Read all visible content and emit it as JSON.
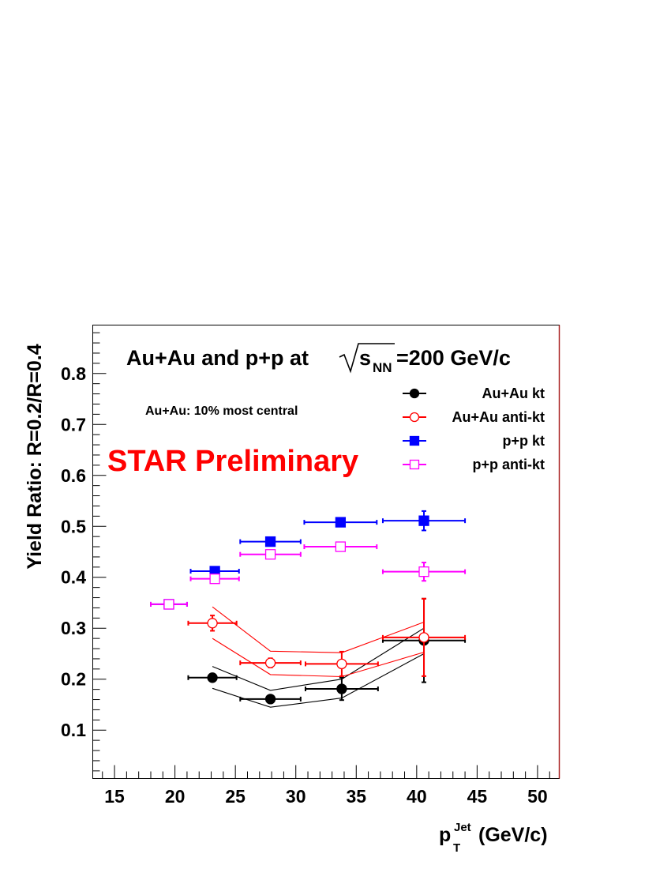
{
  "chart_data": {
    "type": "scatter",
    "title_prefix": "Au+Au and p+p at ",
    "title_sqrt": "s",
    "title_sub": "NN",
    "title_suffix": "=200 GeV/c",
    "annotation": "Au+Au: 10% most central",
    "watermark": "STAR Preliminary",
    "ylabel": "Yield Ratio: R=0.2/R=0.4",
    "xlabel_main": "p",
    "xlabel_sub": "T",
    "xlabel_sup": "Jet",
    "xlabel_unit": "(GeV/c)",
    "xlim": [
      13.2,
      51.8
    ],
    "ylim": [
      0.005,
      0.895
    ],
    "x_ticks": [
      15,
      20,
      25,
      30,
      35,
      40,
      45,
      50
    ],
    "y_ticks": [
      0.1,
      0.2,
      0.3,
      0.4,
      0.5,
      0.6,
      0.7,
      0.8
    ],
    "x_tick_labels": [
      "15",
      "20",
      "25",
      "30",
      "35",
      "40",
      "45",
      "50"
    ],
    "y_tick_labels": [
      "0.1",
      "0.2",
      "0.3",
      "0.4",
      "0.5",
      "0.6",
      "0.7",
      "0.8"
    ],
    "grid": false,
    "legend_position": "top-right",
    "series": [
      {
        "name": "Au+Au kt",
        "color": "#000000",
        "marker": "filled-circle",
        "x": [
          23.1,
          27.9,
          33.8,
          40.6
        ],
        "y": [
          0.203,
          0.161,
          0.181,
          0.276
        ],
        "xerr": [
          2.0,
          2.5,
          3.0,
          3.4
        ],
        "yerr": [
          0.006,
          0.007,
          0.022,
          0.082
        ],
        "band_upper": [
          0.225,
          0.178,
          0.2,
          0.3
        ],
        "band_lower": [
          0.182,
          0.145,
          0.163,
          0.25
        ]
      },
      {
        "name": "Au+Au anti-kt",
        "color": "#ff0000",
        "marker": "open-circle",
        "x": [
          23.1,
          27.9,
          33.8,
          40.6
        ],
        "y": [
          0.31,
          0.232,
          0.23,
          0.282
        ],
        "xerr": [
          2.0,
          2.5,
          3.0,
          3.4
        ],
        "yerr": [
          0.015,
          0.009,
          0.024,
          0.076
        ],
        "band_upper": [
          0.342,
          0.255,
          0.252,
          0.312
        ],
        "band_lower": [
          0.28,
          0.209,
          0.205,
          0.253
        ]
      },
      {
        "name": "p+p kt",
        "color": "#0000ff",
        "marker": "filled-square",
        "x": [
          19.5,
          23.3,
          27.9,
          33.7,
          40.6
        ],
        "y": [
          0.347,
          0.412,
          0.47,
          0.508,
          0.511
        ],
        "xerr": [
          1.5,
          2.0,
          2.5,
          3.0,
          3.4
        ],
        "yerr": [
          0.004,
          0.005,
          0.005,
          0.006,
          0.019
        ]
      },
      {
        "name": "p+p anti-kt",
        "color": "#ff00ff",
        "marker": "open-square",
        "x": [
          19.5,
          23.3,
          27.9,
          33.7,
          40.6
        ],
        "y": [
          0.347,
          0.397,
          0.445,
          0.46,
          0.411
        ],
        "xerr": [
          1.5,
          2.0,
          2.5,
          3.0,
          3.4
        ],
        "yerr": [
          0.004,
          0.005,
          0.005,
          0.006,
          0.018
        ]
      }
    ]
  }
}
